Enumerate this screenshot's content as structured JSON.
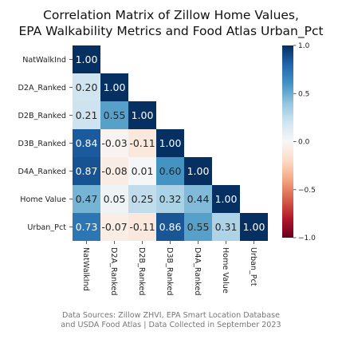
{
  "chart_data": {
    "type": "heatmap",
    "title_lines": [
      "Correlation Matrix of Zillow Home Values,",
      "EPA Walkability Metrics and Food Atlas Urban_Pct"
    ],
    "row_labels": [
      "NatWalkInd",
      "D2A_Ranked",
      "D2B_Ranked",
      "D3B_Ranked",
      "D4A_Ranked",
      "Home Value",
      "Urban_Pct"
    ],
    "col_labels": [
      "NatWalkInd",
      "D2A_Ranked",
      "D2B_Ranked",
      "D3B_Ranked",
      "D4A_Ranked",
      "Home Value",
      "Urban_Pct"
    ],
    "values": [
      [
        1.0
      ],
      [
        0.2,
        1.0
      ],
      [
        0.21,
        0.55,
        1.0
      ],
      [
        0.84,
        -0.03,
        -0.11,
        1.0
      ],
      [
        0.87,
        -0.08,
        0.01,
        0.6,
        1.0
      ],
      [
        0.47,
        0.05,
        0.25,
        0.32,
        0.44,
        1.0
      ],
      [
        0.73,
        -0.07,
        -0.11,
        0.86,
        0.55,
        0.31,
        1.0
      ]
    ],
    "value_labels": [
      [
        "1.00"
      ],
      [
        "0.20",
        "1.00"
      ],
      [
        "0.21",
        "0.55",
        "1.00"
      ],
      [
        "0.84",
        "-0.03",
        "-0.11",
        "1.00"
      ],
      [
        "0.87",
        "-0.08",
        "0.01",
        "0.60",
        "1.00"
      ],
      [
        "0.47",
        "0.05",
        "0.25",
        "0.32",
        "0.44",
        "1.00"
      ],
      [
        "0.73",
        "-0.07",
        "-0.11",
        "0.86",
        "0.55",
        "0.31",
        "1.00"
      ]
    ],
    "mask": "upper-triangle",
    "colormap": "RdBu",
    "vmin": -1.0,
    "vmax": 1.0,
    "colorbar_ticks": [
      1.0,
      0.5,
      0.0,
      -0.5,
      -1.0
    ],
    "colorbar_tick_labels": [
      "1.0",
      "0.5",
      "0.0",
      "−0.5",
      "−1.0"
    ],
    "colorbar_position": "right"
  },
  "footnote": {
    "line1": "Data Sources: Zillow ZHVI, EPA Smart Location Database",
    "line2": "and USDA Food Atlas | Data Collected in September 2023"
  }
}
